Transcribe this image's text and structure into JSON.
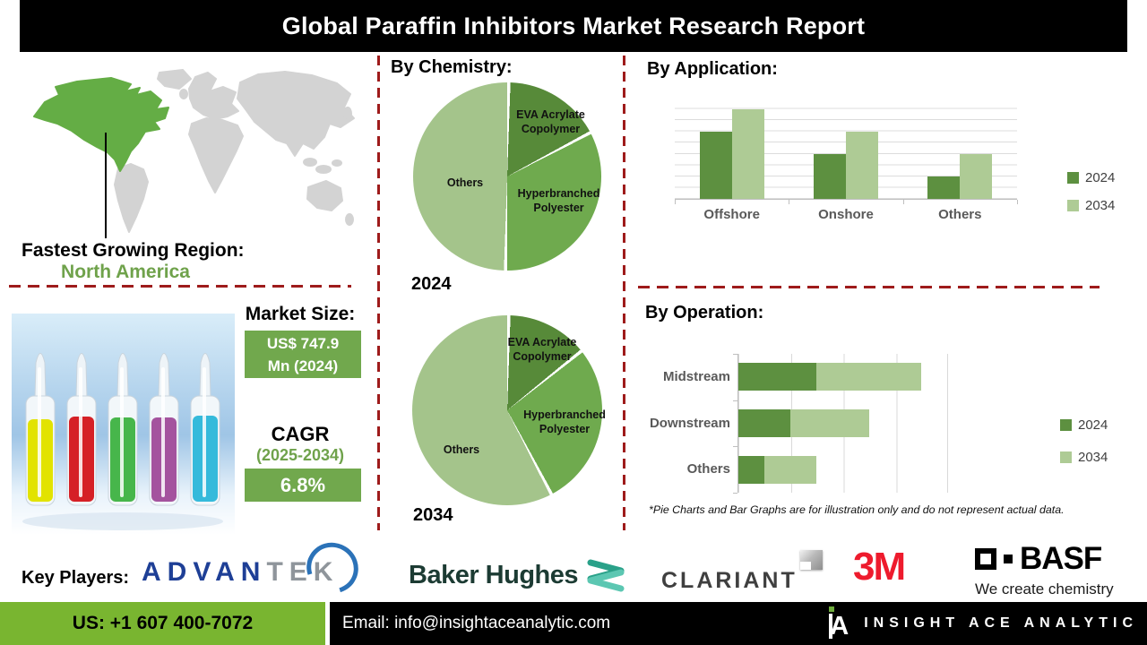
{
  "title": "Global Paraffin Inhibitors Market Research Report",
  "region": {
    "heading": "Fastest Growing Region:",
    "value": "North America"
  },
  "market": {
    "heading": "Market Size:",
    "value_line1": "US$ 747.9",
    "value_line2": "Mn (2024)",
    "cagr_heading": "CAGR",
    "cagr_period": "(2025-2034)",
    "cagr_value": "6.8%"
  },
  "sections": {
    "chemistry_heading": "By Chemistry:",
    "application_heading": "By Application:",
    "operation_heading": "By Operation:",
    "disclaimer": "*Pie Charts and Bar Graphs are for illustration only and do not represent actual data."
  },
  "key_players": {
    "label": "Key Players:",
    "advantek_part1": "ADVAN",
    "advantek_part2": "TEK",
    "baker_hughes": "Baker Hughes",
    "clariant": "CLARIANT",
    "three_m": "3M",
    "basf": "BASF",
    "basf_tagline": "We create chemistry"
  },
  "footer": {
    "phone": "US: +1 607 400-7072",
    "email": "Email: info@insightaceanalytic.com",
    "brand": "INSIGHT ACE ANALYTIC"
  },
  "colors": {
    "accent_green_dark": "#5d9040",
    "accent_green_mid": "#6faa4e",
    "accent_green_light": "#aecb95",
    "box_green": "#71a84d",
    "map_green": "#64ad45",
    "map_gray": "#d3d3d3",
    "dash_red": "#9e1b1b",
    "footer_green": "#79b530",
    "title_bg": "#000000"
  },
  "chart_data": [
    {
      "type": "pie",
      "title": "By Chemistry:",
      "year": "2024",
      "slices": [
        {
          "label": "EVA Acrylate Copolymer",
          "value": 17,
          "color": "#578a39"
        },
        {
          "label": "Hyperbranched Polyester",
          "value": 33,
          "color": "#6faa4e"
        },
        {
          "label": "Others",
          "value": 50,
          "color": "#a4c48b"
        }
      ],
      "note": "illustrative only"
    },
    {
      "type": "pie",
      "title": "By Chemistry:",
      "year": "2034",
      "slices": [
        {
          "label": "EVA Acrylate Copolymer",
          "value": 14,
          "color": "#578a39"
        },
        {
          "label": "Hyperbranched Polyester",
          "value": 28,
          "color": "#6faa4e"
        },
        {
          "label": "Others",
          "value": 58,
          "color": "#a4c48b"
        }
      ],
      "note": "illustrative only"
    },
    {
      "type": "bar",
      "title": "By Application:",
      "categories": [
        "Offshore",
        "Onshore",
        "Others"
      ],
      "series": [
        {
          "name": "2024",
          "color": "#5d9040",
          "values": [
            6,
            4,
            2
          ]
        },
        {
          "name": "2034",
          "color": "#aecb95",
          "values": [
            8,
            6,
            4
          ]
        }
      ],
      "ylim": [
        0,
        9
      ],
      "grid": true,
      "legend_position": "right",
      "unit": "relative units (illustrative only)"
    },
    {
      "type": "bar-horizontal-stacked",
      "title": "By Operation:",
      "categories": [
        "Midstream",
        "Downstream",
        "Others"
      ],
      "series": [
        {
          "name": "2024",
          "color": "#5d9040",
          "values": [
            1.5,
            1,
            0.5
          ]
        },
        {
          "name": "2034",
          "color": "#aecb95",
          "values": [
            2,
            1.5,
            1
          ]
        }
      ],
      "xlim": [
        0,
        4
      ],
      "grid": true,
      "legend_position": "right",
      "unit": "relative units (illustrative only)"
    }
  ]
}
